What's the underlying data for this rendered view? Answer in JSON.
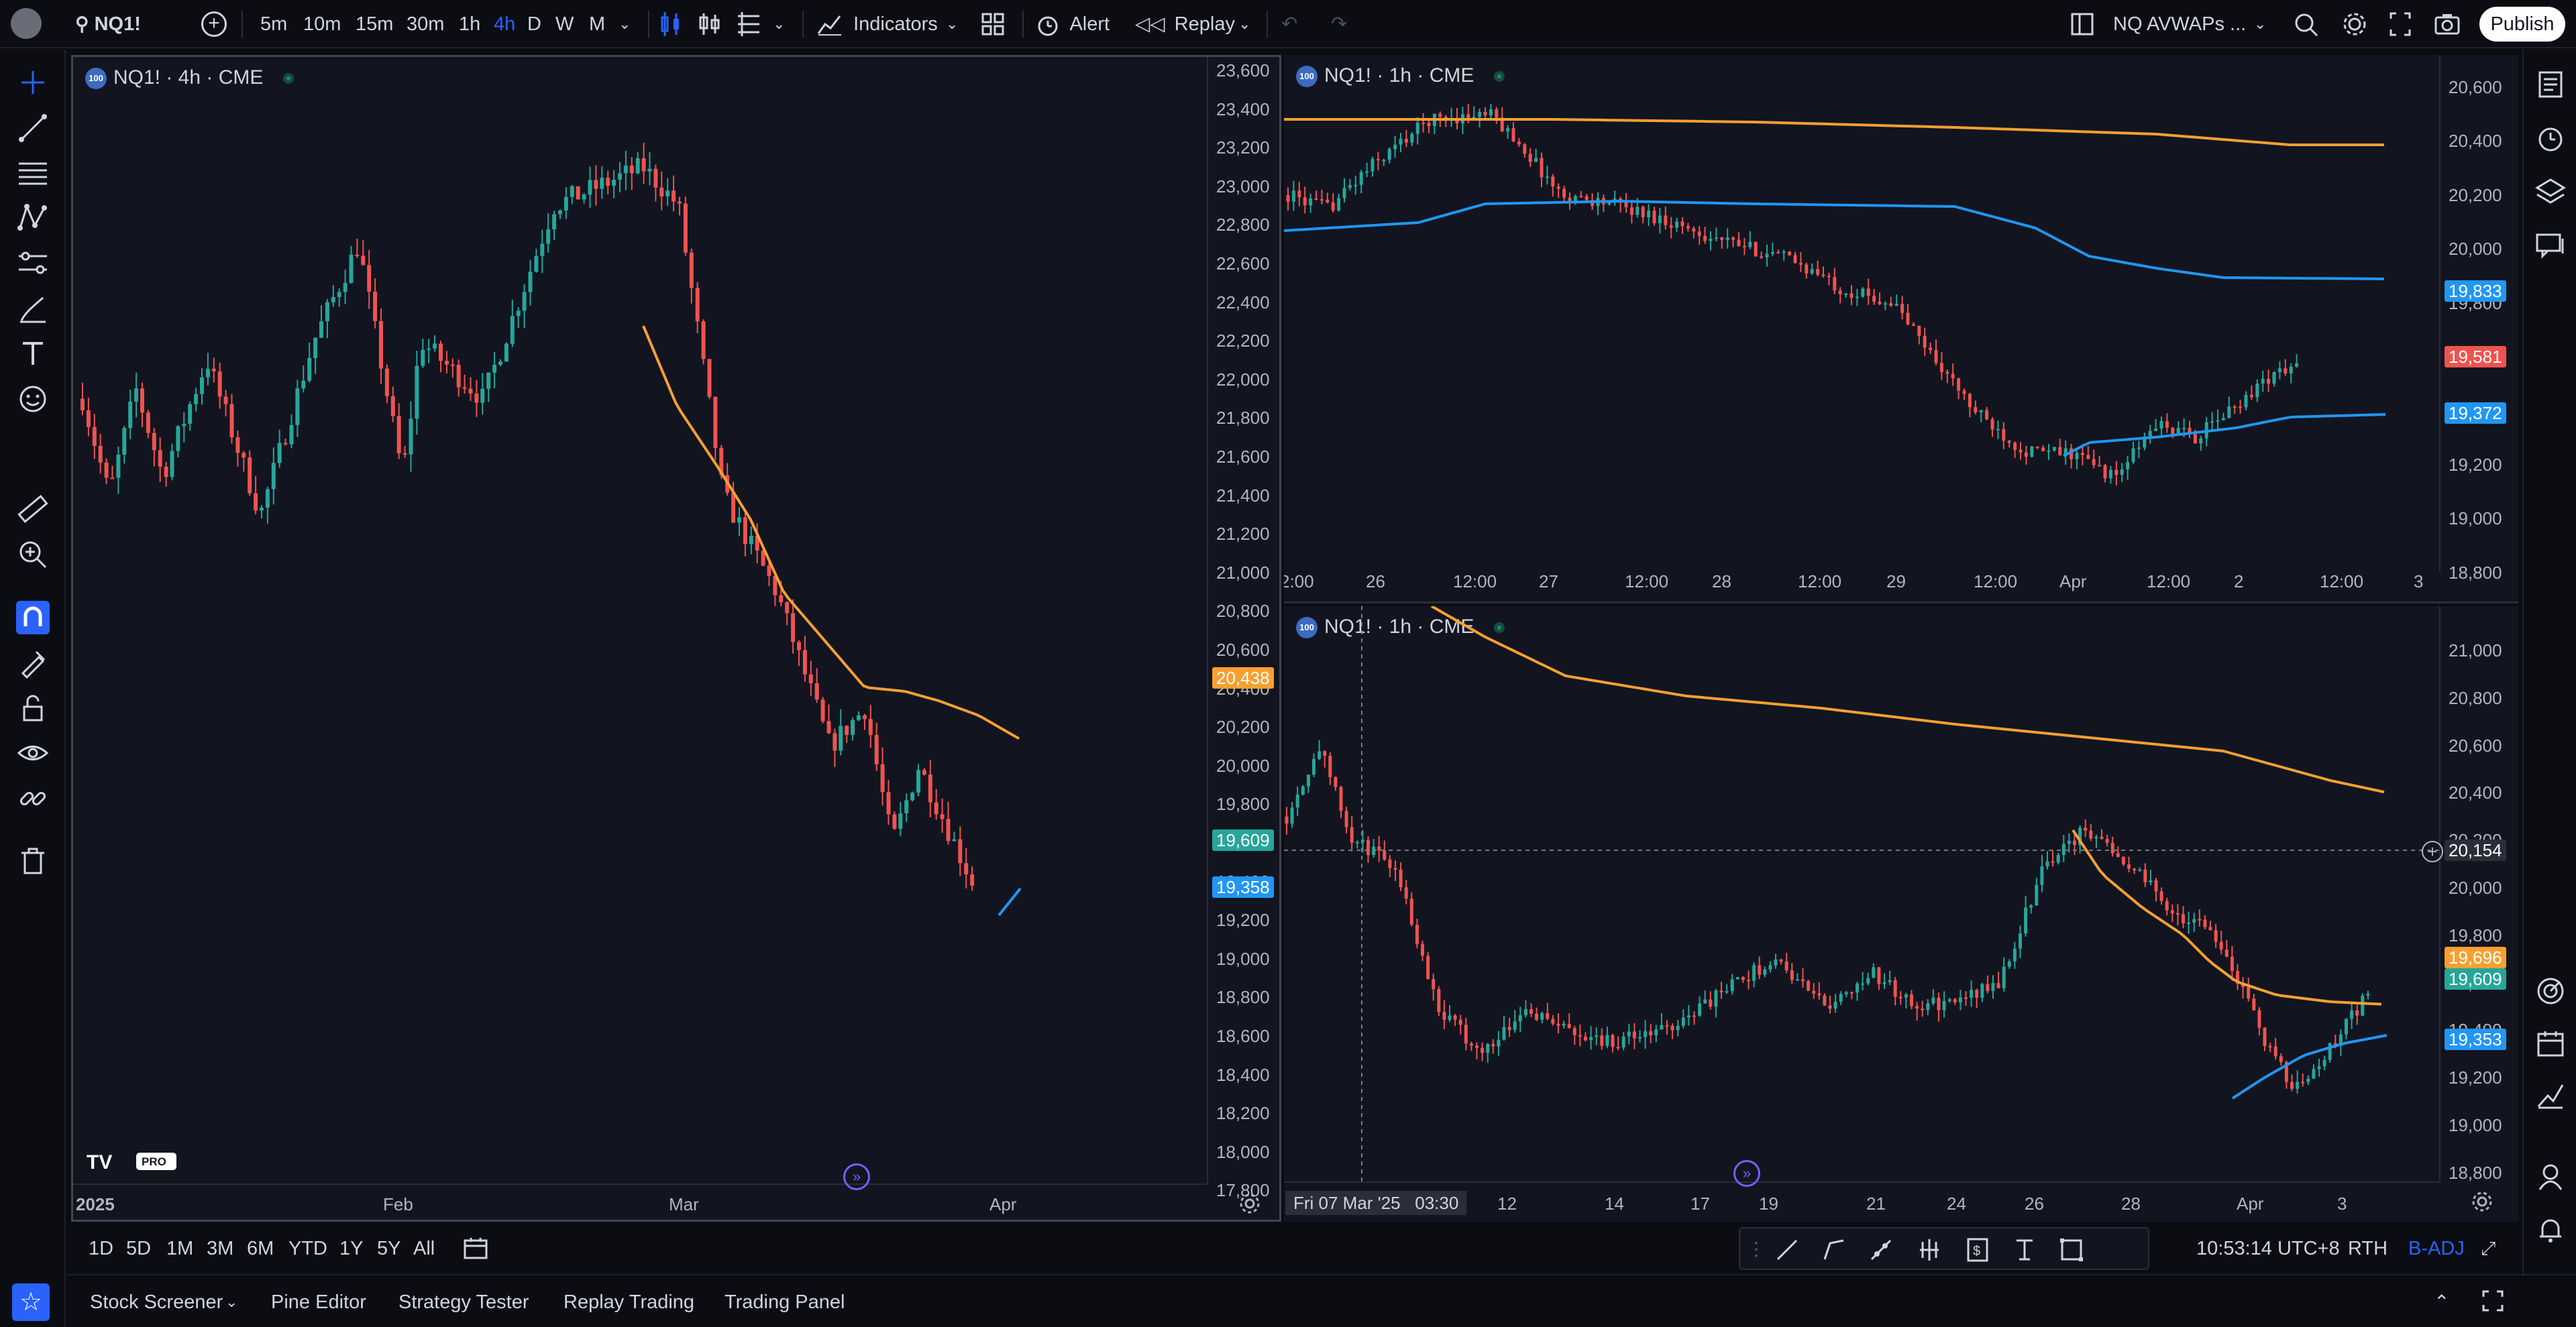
{
  "topbar": {
    "symbol": "NQ1!",
    "timeframes": [
      "5m",
      "10m",
      "15m",
      "30m",
      "1h",
      "4h",
      "D",
      "W",
      "M"
    ],
    "active_timeframe": "4h",
    "indicators_label": "Indicators",
    "alert_label": "Alert",
    "replay_label": "Replay",
    "layout_name": "NQ AVWAPs ...",
    "publish_label": "Publish"
  },
  "colors": {
    "up": "#26a69a",
    "down": "#ef5350",
    "orange": "#f7a031",
    "blue": "#2196f3",
    "accent": "#2962ff",
    "pane_bg": "#121520"
  },
  "left_toolbar_icons": [
    "crosshair-icon",
    "trend-line-icon",
    "fib-icon",
    "pattern-icon",
    "projection-icon",
    "brush-icon",
    "text-icon",
    "emoji-icon",
    "ruler-icon",
    "zoom-in-icon",
    "magnet-icon",
    "lock-drawing-icon",
    "lock-icon",
    "eye-icon",
    "link-icon",
    "trash-icon",
    "star-icon"
  ],
  "right_toolbar_icons": [
    "watchlist-icon",
    "alerts-clock-icon",
    "layers-icon",
    "chat-icon",
    "target-icon",
    "calendar-icon",
    "pine-icon",
    "ideas-icon",
    "bell-icon",
    "help-icon"
  ],
  "panes": {
    "left": {
      "title": "NQ1! · 4h · CME",
      "price_axis": [
        "23,600",
        "23,400",
        "23,200",
        "23,000",
        "22,800",
        "22,600",
        "22,400",
        "22,200",
        "22,000",
        "21,800",
        "21,600",
        "21,400",
        "21,200",
        "21,000",
        "20,800",
        "20,600",
        "20,400",
        "20,200",
        "20,000",
        "19,800",
        "19,600",
        "19,400",
        "19,200",
        "19,000",
        "18,800",
        "18,600",
        "18,400",
        "18,200",
        "18,000",
        "17,800"
      ],
      "tags": [
        {
          "label": "20,438",
          "color": "#f7a031"
        },
        {
          "label": "19,609",
          "color": "#26a69a"
        },
        {
          "label": "19,358",
          "color": "#2196f3"
        }
      ],
      "time_axis": [
        "2025",
        "Feb",
        "Mar",
        "Apr"
      ]
    },
    "top_right": {
      "title": "NQ1! · 1h · CME",
      "price_axis": [
        "20,600",
        "20,400",
        "20,200",
        "20,000",
        "19,800",
        "19,600",
        "19,400",
        "19,200",
        "19,000",
        "18,800"
      ],
      "tags": [
        {
          "label": "19,833",
          "color": "#2196f3"
        },
        {
          "label": "19,581",
          "color": "#ef5350"
        },
        {
          "label": "19,372",
          "color": "#2196f3"
        }
      ],
      "time_axis": [
        "2:00",
        "26",
        "12:00",
        "27",
        "12:00",
        "28",
        "12:00",
        "29",
        "12:00",
        "Apr",
        "12:00",
        "2",
        "12:00",
        "3"
      ]
    },
    "bottom_right": {
      "title": "NQ1! · 1h · CME",
      "price_axis": [
        "21,000",
        "20,800",
        "20,600",
        "20,400",
        "20,200",
        "20,000",
        "19,800",
        "19,600",
        "19,400",
        "19,200",
        "19,000",
        "18,800"
      ],
      "tags": [
        {
          "label": "20,154",
          "color": "#2a2e39"
        },
        {
          "label": "19,696",
          "color": "#f7a031"
        },
        {
          "label": "19,609",
          "color": "#26a69a"
        },
        {
          "label": "19,353",
          "color": "#2196f3"
        }
      ],
      "time_axis": [
        "12",
        "14",
        "17",
        "19",
        "21",
        "24",
        "26",
        "28",
        "Apr",
        "3"
      ],
      "crosshair_time": "Fri 07 Mar '25",
      "crosshair_clock": "03:30"
    }
  },
  "rangebar": {
    "ranges": [
      "1D",
      "5D",
      "1M",
      "3M",
      "6M",
      "YTD",
      "1Y",
      "5Y",
      "All"
    ],
    "clock": "10:53:14 UTC+8",
    "session": "RTH",
    "adjustment": "B-ADJ"
  },
  "bottombar": {
    "tabs": [
      "Stock Screener",
      "Pine Editor",
      "Strategy Tester",
      "Replay Trading",
      "Trading Panel"
    ]
  }
}
